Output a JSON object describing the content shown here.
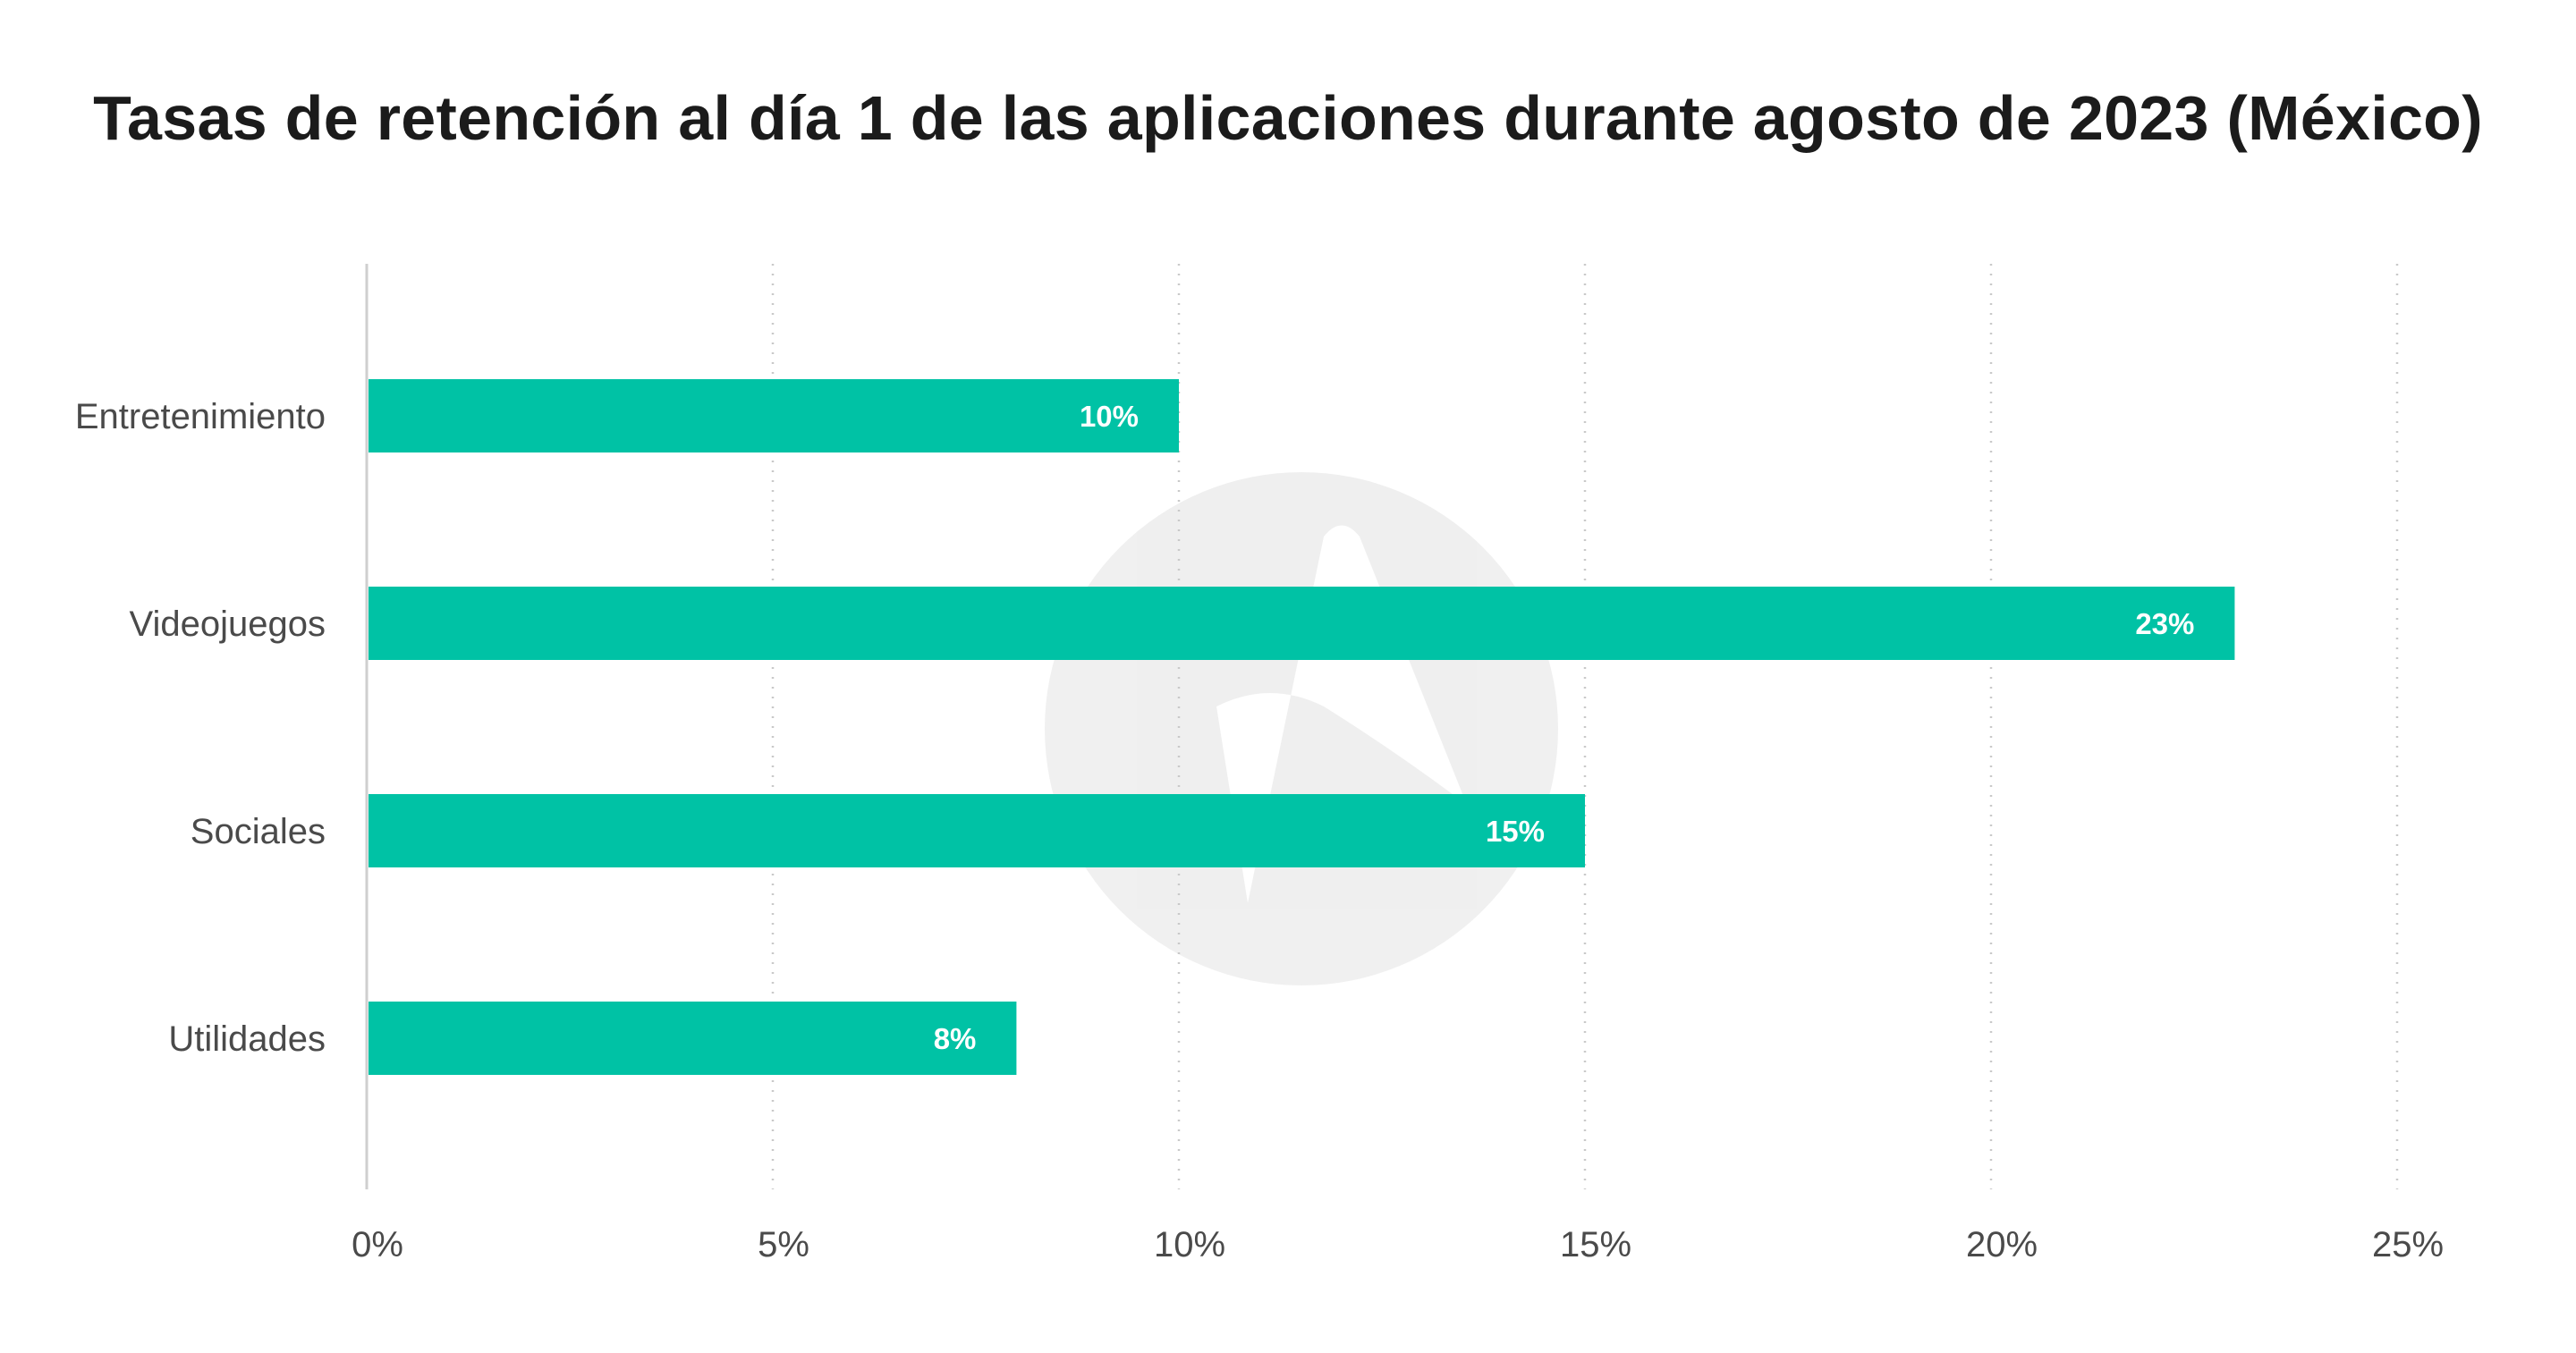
{
  "chart_data": {
    "type": "bar",
    "orientation": "horizontal",
    "title": "Tasas de retención al día 1 de las aplicaciones durante agosto de 2023 (México)",
    "categories": [
      "Entretenimiento",
      "Videojuegos",
      "Sociales",
      "Utilidades"
    ],
    "values": [
      10,
      23,
      15,
      8
    ],
    "data_labels": [
      "10%",
      "23%",
      "15%",
      "8%"
    ],
    "x_ticks": [
      "0%",
      "5%",
      "10%",
      "15%",
      "20%",
      "25%"
    ],
    "xlim": [
      0,
      25
    ],
    "grid": "vertical dotted",
    "bar_color": "#00c2a5",
    "xlabel": "",
    "ylabel": ""
  }
}
